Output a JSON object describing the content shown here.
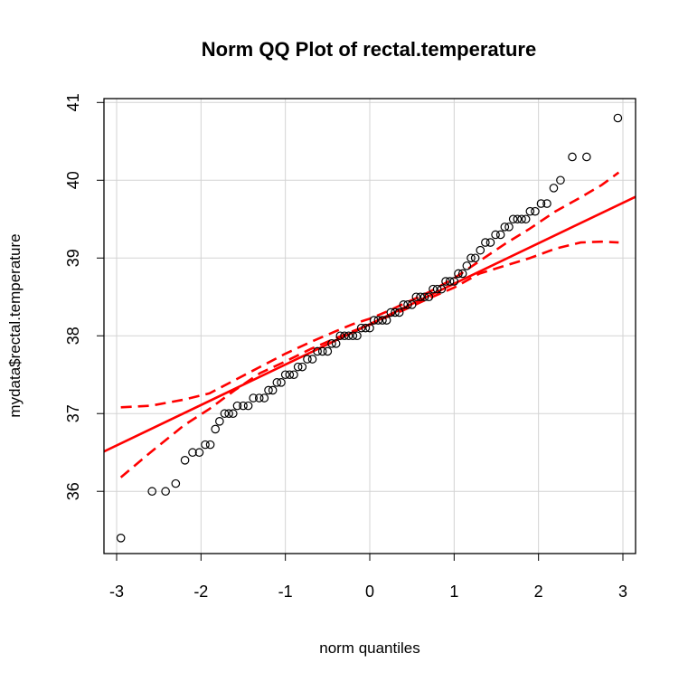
{
  "chart_data": {
    "type": "scatter",
    "title": "Norm QQ Plot of rectal.temperature",
    "xlabel": "norm quantiles",
    "ylabel": "mydata$rectal.temperature",
    "xlim": [
      -3.15,
      3.15
    ],
    "ylim": [
      35.2,
      41.05
    ],
    "xticks": [
      "-3",
      "-2",
      "-1",
      "0",
      "1",
      "2",
      "3"
    ],
    "yticks": [
      "36",
      "37",
      "38",
      "39",
      "40",
      "41"
    ],
    "grid": true,
    "colors": {
      "points": "#000000",
      "reference_line": "#ff0000",
      "confidence_band": "#ff0000",
      "grid": "#d3d3d3"
    },
    "reference_line": {
      "intercept": 38.15,
      "slope": 0.52
    },
    "confidence_band": {
      "x": [
        -2.95,
        -2.6,
        -2.2,
        -1.9,
        -1.6,
        -1.3,
        -1.0,
        -0.7,
        -0.4,
        -0.2,
        0.0,
        0.2,
        0.4,
        0.7,
        1.0,
        1.3,
        1.6,
        1.9,
        2.2,
        2.5,
        2.75,
        2.95
      ],
      "upper": [
        37.08,
        37.1,
        37.18,
        37.26,
        37.43,
        37.6,
        37.77,
        37.92,
        38.06,
        38.15,
        38.22,
        38.31,
        38.41,
        38.56,
        38.74,
        38.96,
        39.18,
        39.38,
        39.6,
        39.78,
        39.94,
        40.1
      ],
      "lower": [
        36.18,
        36.5,
        36.85,
        37.06,
        37.3,
        37.52,
        37.67,
        37.83,
        37.97,
        38.06,
        38.14,
        38.24,
        38.33,
        38.48,
        38.62,
        38.8,
        38.9,
        39.0,
        39.12,
        39.2,
        39.21,
        39.2
      ]
    },
    "series": [
      {
        "x": [
          -2.95,
          -2.58,
          -2.42,
          -2.3,
          -2.19,
          -2.1,
          -2.02,
          -1.95,
          -1.89,
          -1.83,
          -1.78,
          -1.72,
          -1.67,
          -1.62,
          -1.57,
          -1.5,
          -1.44,
          -1.38,
          -1.31,
          -1.25,
          -1.2,
          -1.15,
          -1.1,
          -1.05,
          -1.0,
          -0.95,
          -0.9,
          -0.85,
          -0.8,
          -0.74,
          -0.68,
          -0.62,
          -0.56,
          -0.5,
          -0.45,
          -0.4,
          -0.35,
          -0.3,
          -0.25,
          -0.2,
          -0.15,
          -0.1,
          -0.05,
          0.0,
          0.05,
          0.1,
          0.15,
          0.2,
          0.25,
          0.3,
          0.35,
          0.4,
          0.45,
          0.5,
          0.55,
          0.6,
          0.65,
          0.7,
          0.75,
          0.8,
          0.85,
          0.9,
          0.95,
          1.0,
          1.05,
          1.1,
          1.15,
          1.2,
          1.25,
          1.31,
          1.37,
          1.43,
          1.49,
          1.55,
          1.6,
          1.65,
          1.7,
          1.75,
          1.8,
          1.85,
          1.9,
          1.96,
          2.03,
          2.1,
          2.18,
          2.26,
          2.4,
          2.57,
          2.94
        ],
        "y": [
          35.4,
          36.0,
          36.0,
          36.1,
          36.4,
          36.5,
          36.5,
          36.6,
          36.6,
          36.8,
          36.9,
          37.0,
          37.0,
          37.0,
          37.1,
          37.1,
          37.1,
          37.2,
          37.2,
          37.2,
          37.3,
          37.3,
          37.4,
          37.4,
          37.5,
          37.5,
          37.5,
          37.6,
          37.6,
          37.7,
          37.7,
          37.8,
          37.8,
          37.8,
          37.9,
          37.9,
          38.0,
          38.0,
          38.0,
          38.0,
          38.0,
          38.1,
          38.1,
          38.1,
          38.2,
          38.2,
          38.2,
          38.2,
          38.3,
          38.3,
          38.3,
          38.4,
          38.4,
          38.4,
          38.5,
          38.5,
          38.5,
          38.5,
          38.6,
          38.6,
          38.6,
          38.7,
          38.7,
          38.7,
          38.8,
          38.8,
          38.9,
          39.0,
          39.0,
          39.1,
          39.2,
          39.2,
          39.3,
          39.3,
          39.4,
          39.4,
          39.5,
          39.5,
          39.5,
          39.5,
          39.6,
          39.6,
          39.7,
          39.7,
          39.9,
          40.0,
          40.3,
          40.3,
          40.8
        ]
      }
    ]
  }
}
